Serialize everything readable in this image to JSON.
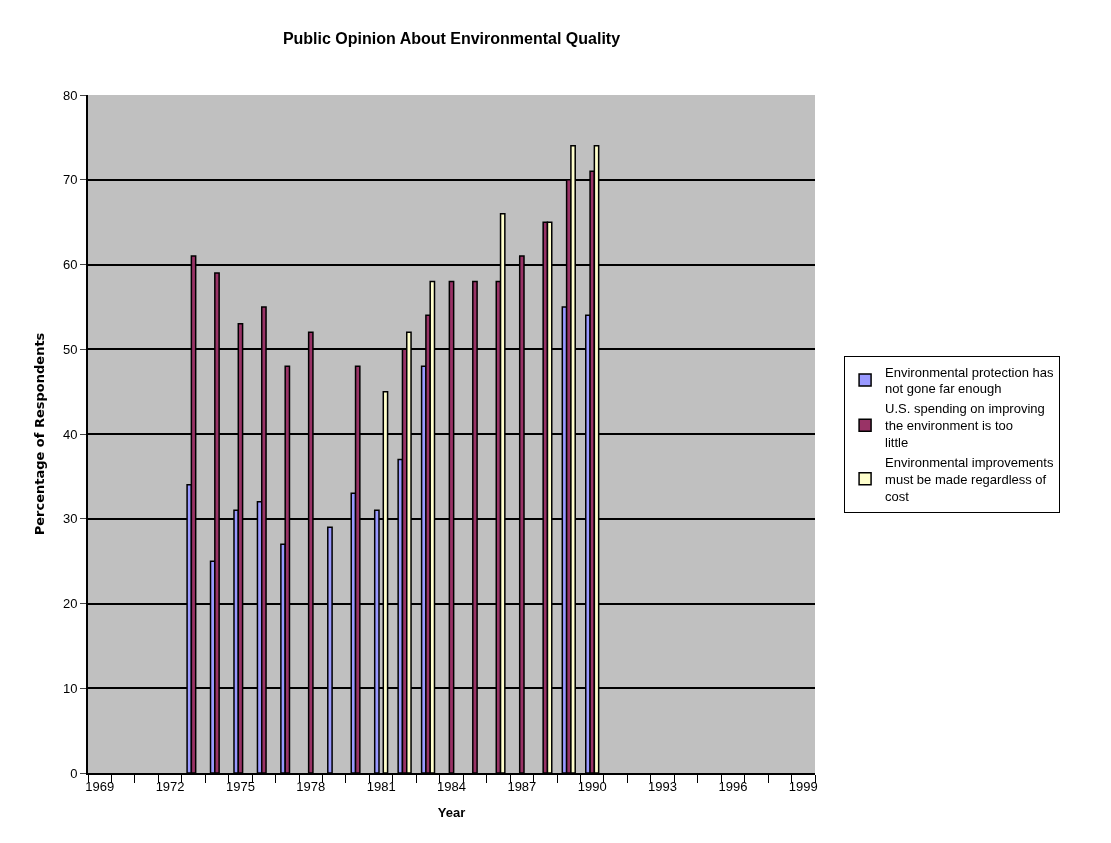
{
  "chart_data": {
    "type": "bar",
    "title": "Public Opinion About Environmental Quality",
    "xlabel": "Year",
    "ylabel": "Percentage of Respondents",
    "categories": [
      "1969",
      null,
      null,
      "1972",
      null,
      null,
      "1975",
      null,
      null,
      "1978",
      null,
      null,
      "1981",
      null,
      null,
      "1984",
      null,
      null,
      "1987",
      null,
      null,
      "1990",
      null,
      null,
      "1993",
      null,
      null,
      "1996",
      null,
      null,
      "1999"
    ],
    "series": [
      {
        "name": "Environmental protection has not gone far enough",
        "color": "#9999ff",
        "values": [
          null,
          null,
          null,
          null,
          34,
          25,
          31,
          32,
          27,
          null,
          29,
          33,
          31,
          37,
          48,
          null,
          null,
          null,
          null,
          null,
          55,
          54,
          null,
          null,
          null,
          null,
          null,
          null,
          null,
          null,
          null
        ]
      },
      {
        "name": "U.S. spending on improving the environment is too little",
        "color": "#993366",
        "values": [
          null,
          null,
          null,
          null,
          61,
          59,
          53,
          55,
          48,
          52,
          null,
          48,
          null,
          50,
          54,
          58,
          58,
          58,
          61,
          65,
          70,
          71,
          null,
          null,
          null,
          null,
          null,
          null,
          null,
          null,
          null
        ]
      },
      {
        "name": "Environmental improvements must be made regardless of cost",
        "color": "#ffffcc",
        "values": [
          null,
          null,
          null,
          null,
          null,
          null,
          null,
          null,
          null,
          null,
          null,
          null,
          45,
          52,
          58,
          null,
          null,
          66,
          null,
          65,
          74,
          74,
          null,
          null,
          null,
          null,
          null,
          null,
          null,
          null,
          null
        ]
      }
    ],
    "ylim": [
      0,
      80
    ],
    "yticks": [
      0,
      10,
      20,
      30,
      40,
      50,
      60,
      70,
      80
    ],
    "grid": "y",
    "legend": "right"
  }
}
